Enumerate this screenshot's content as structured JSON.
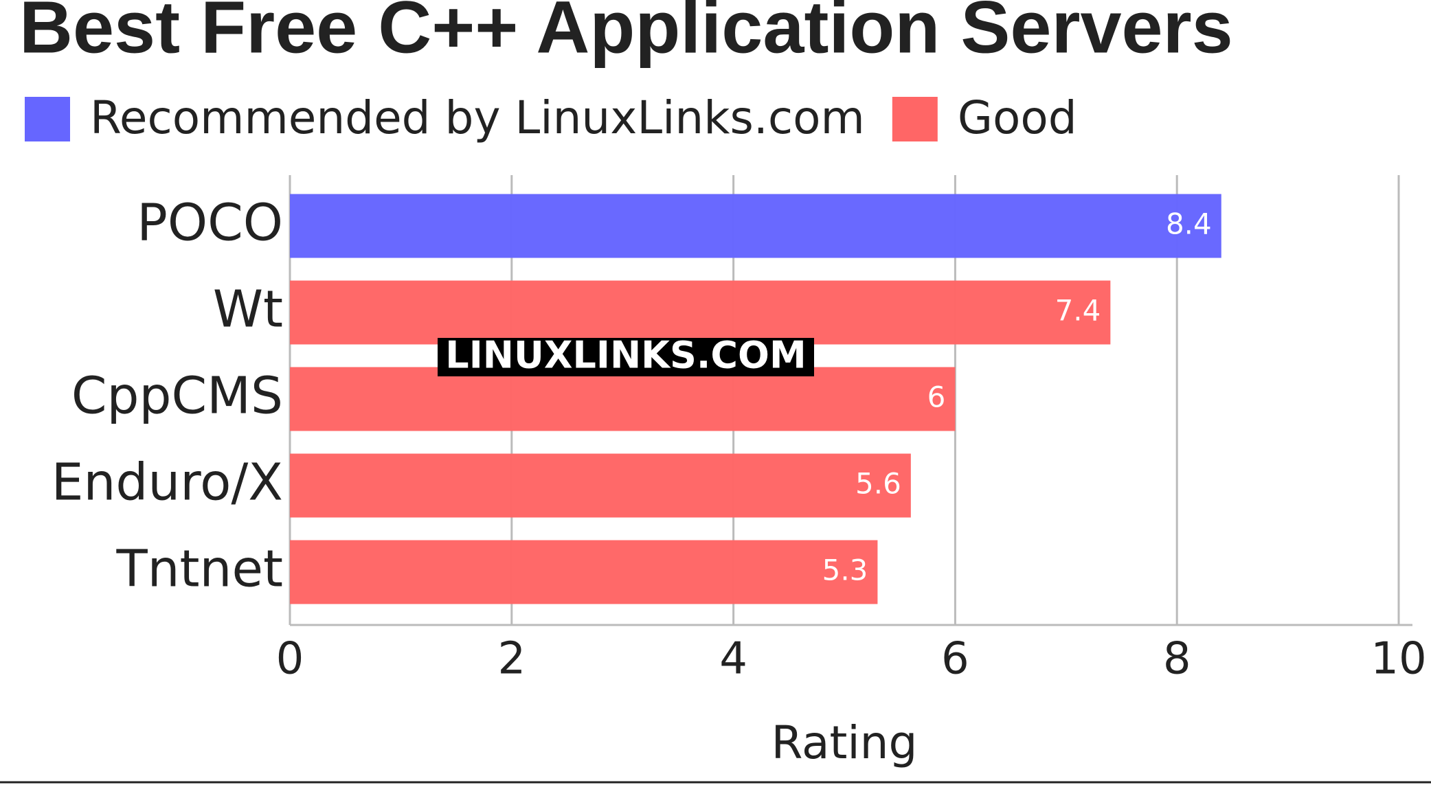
{
  "chart_data": {
    "type": "hbar",
    "title": "Best Free C++ Application Servers",
    "categories": [
      "POCO",
      "Wt",
      "CppCMS",
      "Enduro/X",
      "Tntnet"
    ],
    "series": [
      {
        "name": "Recommended by LinuxLinks.com",
        "color": "#6666ff",
        "values": [
          8.4,
          null,
          null,
          null,
          null
        ]
      },
      {
        "name": "Good",
        "color": "#ff6666",
        "values": [
          null,
          7.4,
          6,
          5.6,
          5.3
        ]
      }
    ],
    "xlabel": "Rating",
    "xlim": [
      0,
      10
    ],
    "xticks": [
      0,
      2,
      4,
      6,
      8,
      10
    ],
    "grid": true,
    "watermark": "LINUXLINKS.COM"
  }
}
